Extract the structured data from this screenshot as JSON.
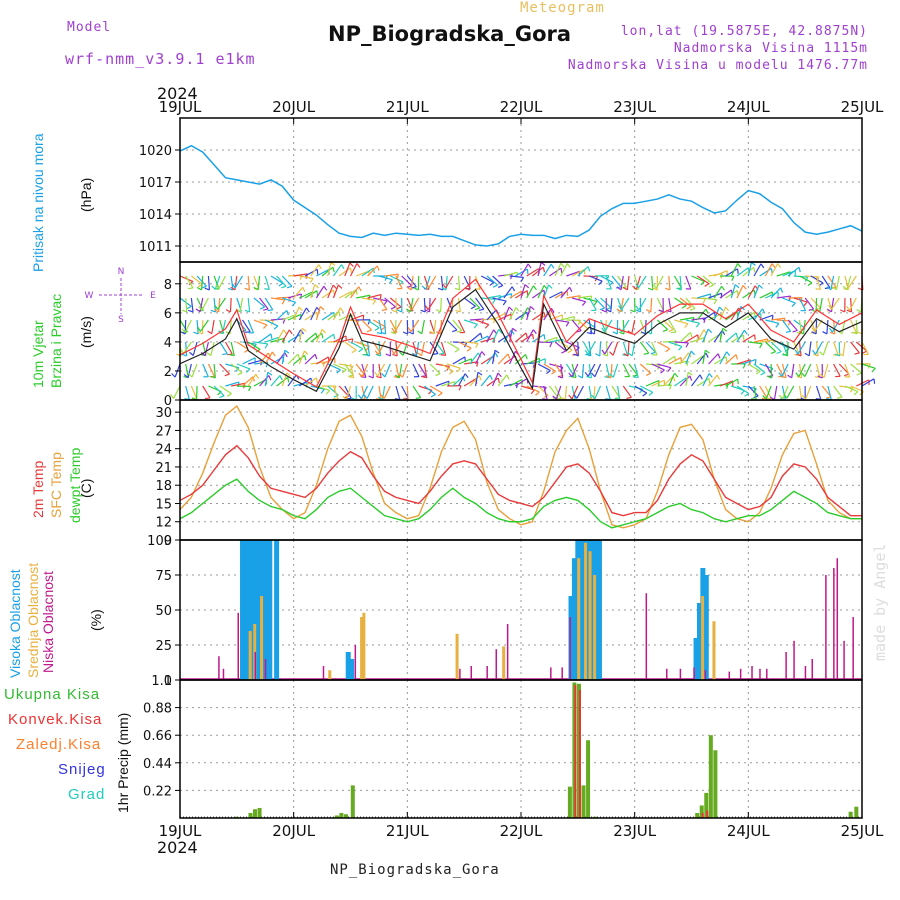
{
  "header": {
    "model_label": "Model",
    "model_name": "wrf-nmm_v3.9.1 e1km",
    "title": "NP_Biogradska_Gora",
    "subtitle": "Meteogram",
    "coords": "lon,lat (19.5875E, 42.8875N)",
    "elevation": "Nadmorska Visina 1115m",
    "model_elevation": "Nadmorska Visina u modelu 1476.77m",
    "year_top": "2024",
    "year_bottom": "2024",
    "footer": "NP_Biogradska_Gora",
    "credit": "made by Angel"
  },
  "colors": {
    "pressure": "#1aa0e6",
    "wind_speed": "#222222",
    "wind_gust": "#ff3333",
    "temp2m": "#e83a3a",
    "sfc_temp": "#e8a03a",
    "dewpt": "#2ccc2c",
    "high_cloud": "#19a0e6",
    "mid_cloud": "#e8b040",
    "low_cloud": "#c0188c",
    "total_precip": "#33bb33",
    "conv_precip": "#ee3333",
    "frozen": "#ff7f2a",
    "snow": "#3333dd",
    "graupel": "#22ccbb"
  },
  "chart_data": [
    {
      "type": "line",
      "panel": "pressure",
      "label_left": "Pritisak na nivou mora",
      "ylabel": "(hPa)",
      "ylim": [
        1009.5,
        1023
      ],
      "yticks": [
        1011,
        1014,
        1017,
        1020
      ],
      "x_days": [
        "19JUL",
        "20JUL",
        "21JUL",
        "22JUL",
        "23JUL",
        "24JUL",
        "25JUL"
      ],
      "x": [
        0,
        0.1,
        0.2,
        0.3,
        0.4,
        0.5,
        0.6,
        0.7,
        0.8,
        0.9,
        1.0,
        1.1,
        1.2,
        1.3,
        1.4,
        1.5,
        1.6,
        1.7,
        1.8,
        1.9,
        2.0,
        2.1,
        2.2,
        2.3,
        2.4,
        2.5,
        2.6,
        2.7,
        2.8,
        2.9,
        3.0,
        3.1,
        3.2,
        3.3,
        3.4,
        3.5,
        3.6,
        3.7,
        3.8,
        3.9,
        4.0,
        4.1,
        4.2,
        4.3,
        4.4,
        4.5,
        4.6,
        4.7,
        4.8,
        4.9,
        5.0,
        5.1,
        5.2,
        5.3,
        5.4,
        5.5,
        5.6,
        5.7,
        5.8,
        5.9,
        6.0
      ],
      "series": [
        {
          "values": [
            1019.9,
            1020.4,
            1019.8,
            1018.6,
            1017.4,
            1017.2,
            1017.0,
            1016.8,
            1017.2,
            1016.6,
            1015.3,
            1014.6,
            1013.9,
            1013.0,
            1012.2,
            1011.9,
            1011.8,
            1012.2,
            1012.0,
            1012.2,
            1012.1,
            1012.0,
            1012.1,
            1011.9,
            1011.9,
            1011.5,
            1011.1,
            1011.0,
            1011.2,
            1011.9,
            1012.1,
            1012.0,
            1012.0,
            1011.7,
            1012.0,
            1011.9,
            1012.5,
            1013.8,
            1014.5,
            1015.0,
            1015.0,
            1015.2,
            1015.4,
            1015.8,
            1015.4,
            1015.2,
            1014.6,
            1014.1,
            1014.3,
            1015.3,
            1016.2,
            1015.9,
            1015.1,
            1014.5,
            1013.2,
            1012.3,
            1012.1,
            1012.3,
            1012.6,
            1012.9,
            1012.4
          ]
        }
      ]
    },
    {
      "type": "line",
      "panel": "wind",
      "label_left": "10m Vjetar",
      "label_left2": "Brzina i Pravac",
      "ylabel": "(m/s)",
      "ylim": [
        0,
        9.5
      ],
      "yticks": [
        0,
        2,
        4,
        6,
        8
      ],
      "compass": [
        "N",
        "S",
        "W",
        "E"
      ],
      "x": [
        0,
        0.2,
        0.4,
        0.5,
        0.6,
        0.8,
        1.0,
        1.2,
        1.4,
        1.5,
        1.6,
        1.8,
        2.0,
        2.2,
        2.4,
        2.6,
        2.8,
        3.0,
        3.1,
        3.2,
        3.4,
        3.6,
        3.8,
        4.0,
        4.2,
        4.4,
        4.6,
        4.8,
        5.0,
        5.2,
        5.4,
        5.6,
        5.8,
        6.0
      ],
      "series": [
        {
          "name": "speed",
          "values": [
            2.5,
            3.2,
            4.2,
            5.6,
            3.4,
            2.3,
            1.4,
            0.6,
            3.6,
            5.9,
            4.1,
            3.7,
            3.2,
            2.7,
            6.4,
            7.6,
            5.2,
            2.2,
            0.8,
            6.6,
            3.4,
            5.0,
            4.4,
            3.9,
            5.2,
            6.0,
            6.0,
            5.0,
            6.0,
            4.2,
            3.5,
            5.6,
            4.7,
            5.4
          ]
        },
        {
          "name": "gust",
          "values": [
            3.1,
            3.9,
            4.9,
            6.2,
            3.8,
            2.8,
            1.8,
            0.9,
            4.1,
            6.4,
            4.6,
            4.3,
            3.8,
            3.2,
            7.0,
            8.3,
            5.9,
            2.8,
            1.2,
            7.2,
            4.0,
            5.6,
            5.0,
            4.5,
            5.8,
            6.6,
            6.6,
            5.6,
            6.6,
            4.8,
            4.0,
            6.2,
            5.2,
            6.0
          ]
        }
      ]
    },
    {
      "type": "line",
      "panel": "temperature",
      "labels_left": [
        "2m Temp",
        "SFC Temp",
        "dewpt Temp"
      ],
      "ylabel": "(C)",
      "ylim": [
        9,
        32
      ],
      "yticks": [
        9,
        12,
        15,
        18,
        21,
        24,
        27,
        30
      ],
      "x": [
        0,
        0.1,
        0.2,
        0.3,
        0.4,
        0.5,
        0.6,
        0.7,
        0.8,
        0.9,
        1.0,
        1.1,
        1.2,
        1.3,
        1.4,
        1.5,
        1.6,
        1.7,
        1.8,
        1.9,
        2.0,
        2.1,
        2.2,
        2.3,
        2.4,
        2.5,
        2.6,
        2.7,
        2.8,
        2.9,
        3.0,
        3.1,
        3.2,
        3.3,
        3.4,
        3.5,
        3.6,
        3.7,
        3.8,
        3.9,
        4.0,
        4.1,
        4.2,
        4.3,
        4.4,
        4.5,
        4.6,
        4.7,
        4.8,
        4.9,
        5.0,
        5.1,
        5.2,
        5.3,
        5.4,
        5.5,
        5.6,
        5.7,
        5.8,
        5.9,
        6.0
      ],
      "series": [
        {
          "name": "2m Temp",
          "values": [
            15.5,
            16.5,
            18.0,
            20.5,
            23.0,
            24.5,
            22.5,
            19.5,
            17.5,
            17.0,
            16.5,
            16.0,
            17.5,
            20.0,
            22.0,
            23.5,
            22.5,
            19.5,
            17.0,
            16.0,
            15.5,
            15.0,
            17.0,
            19.5,
            21.5,
            22.0,
            21.5,
            19.0,
            16.5,
            15.5,
            15.0,
            14.5,
            16.0,
            18.5,
            21.0,
            21.5,
            20.0,
            17.0,
            13.5,
            13.0,
            13.5,
            13.5,
            15.5,
            19.0,
            21.5,
            23.0,
            22.0,
            19.0,
            16.0,
            15.0,
            14.0,
            14.5,
            16.0,
            19.5,
            21.5,
            21.0,
            19.0,
            16.0,
            14.5,
            13.0,
            13.0
          ]
        },
        {
          "name": "SFC Temp",
          "values": [
            14.0,
            16.0,
            20.0,
            25.0,
            29.5,
            31.0,
            27.5,
            21.0,
            16.0,
            14.0,
            12.5,
            13.5,
            18.0,
            24.0,
            28.5,
            29.5,
            26.0,
            20.0,
            15.0,
            13.5,
            12.5,
            13.0,
            17.5,
            23.5,
            27.5,
            28.5,
            25.5,
            18.5,
            14.0,
            12.5,
            11.5,
            12.0,
            17.0,
            23.5,
            27.0,
            29.0,
            24.0,
            17.0,
            11.5,
            11.0,
            11.5,
            12.5,
            17.0,
            23.0,
            27.5,
            28.0,
            25.5,
            19.0,
            14.0,
            12.5,
            12.0,
            13.5,
            17.5,
            23.0,
            26.5,
            27.0,
            21.5,
            15.5,
            13.5,
            12.5,
            12.5
          ]
        },
        {
          "name": "dewpt Temp",
          "values": [
            12.5,
            13.5,
            15.0,
            16.5,
            18.0,
            19.0,
            17.0,
            15.5,
            14.5,
            14.0,
            13.0,
            12.5,
            14.0,
            16.0,
            17.0,
            17.5,
            16.0,
            14.5,
            13.0,
            12.5,
            12.0,
            12.5,
            14.0,
            16.0,
            17.5,
            16.0,
            15.0,
            13.5,
            12.5,
            12.0,
            12.0,
            12.5,
            14.5,
            15.5,
            16.0,
            15.5,
            14.0,
            12.0,
            11.0,
            11.5,
            12.0,
            12.5,
            13.5,
            14.5,
            15.0,
            14.0,
            13.5,
            12.5,
            12.0,
            12.5,
            13.0,
            13.0,
            14.0,
            15.5,
            17.0,
            16.0,
            15.0,
            13.5,
            13.0,
            12.5,
            12.5
          ]
        }
      ]
    },
    {
      "type": "bar",
      "panel": "clouds",
      "labels_left": [
        "Visoka Oblacnost",
        "Srednja Oblacnost",
        "Niska Oblacnost"
      ],
      "ylabel": "(%)",
      "ylim": [
        0,
        100
      ],
      "yticks": [
        0,
        25,
        50,
        75,
        100
      ],
      "series": [
        {
          "name": "Visoka Oblacnost",
          "x": [
            0.55,
            0.59,
            0.63,
            0.67,
            0.71,
            0.75,
            0.79,
            0.85,
            1.48,
            1.51,
            3.44,
            3.47,
            3.5,
            3.53,
            3.57,
            3.61,
            3.65,
            3.69,
            4.54,
            4.57,
            4.6,
            4.63
          ],
          "values": [
            100,
            100,
            100,
            100,
            100,
            100,
            100,
            100,
            20,
            15,
            60,
            87,
            100,
            100,
            100,
            100,
            100,
            100,
            30,
            55,
            80,
            75
          ]
        },
        {
          "name": "Srednja Oblacnost",
          "x": [
            0.6,
            0.64,
            0.7,
            1.3,
            1.58,
            1.6,
            2.42,
            2.83,
            3.49,
            3.55,
            3.59,
            3.63,
            4.58,
            4.68
          ],
          "values": [
            35,
            40,
            60,
            7,
            45,
            48,
            33,
            24,
            87,
            98,
            92,
            75,
            60,
            42
          ]
        },
        {
          "name": "Niska Oblacnost",
          "x": [
            0.36,
            0.4,
            0.53,
            0.68,
            0.77,
            1.28,
            1.56,
            2.48,
            2.58,
            2.72,
            2.8,
            2.9,
            3.28,
            3.38,
            3.45,
            4.12,
            4.3,
            4.42,
            4.54,
            4.64,
            4.85,
            4.95,
            5.05,
            5.12,
            5.18,
            5.35,
            5.42,
            5.52,
            5.58,
            5.7,
            5.77,
            5.8,
            5.86,
            5.94
          ],
          "values": [
            17,
            8,
            48,
            20,
            15,
            10,
            25,
            8,
            10,
            10,
            22,
            40,
            9,
            9,
            45,
            62,
            8,
            8,
            9,
            7,
            6,
            8,
            10,
            8,
            8,
            20,
            28,
            10,
            15,
            75,
            80,
            87,
            28,
            45
          ]
        }
      ]
    },
    {
      "type": "bar",
      "panel": "precip",
      "labels_left": [
        "Ukupna Kisa",
        "Konvek.Kisa",
        "Zaledj.Kisa",
        "Snijeg",
        "Grad"
      ],
      "ylabel": "1hr Precip (mm)",
      "ylim": [
        0,
        1.1
      ],
      "yticks": [
        0.22,
        0.44,
        0.66,
        0.88,
        1.1
      ],
      "series": [
        {
          "name": "Ukupna Kisa",
          "x": [
            0.5,
            0.62,
            0.66,
            0.7,
            1.38,
            1.42,
            1.46,
            1.52,
            3.43,
            3.47,
            3.51,
            3.55,
            3.59,
            3.65,
            4.55,
            4.59,
            4.63,
            4.67,
            4.71,
            5.9,
            5.95
          ],
          "values": [
            0.01,
            0.04,
            0.07,
            0.08,
            0.02,
            0.04,
            0.03,
            0.26,
            0.25,
            1.08,
            1.07,
            0.26,
            0.62,
            0.01,
            0.04,
            0.1,
            0.2,
            0.66,
            0.54,
            0.05,
            0.09
          ]
        },
        {
          "name": "Konvek.Kisa",
          "x": [
            3.47,
            3.51,
            4.59,
            4.63
          ],
          "values": [
            1.06,
            1.02,
            0.04,
            0.06
          ]
        }
      ]
    }
  ]
}
